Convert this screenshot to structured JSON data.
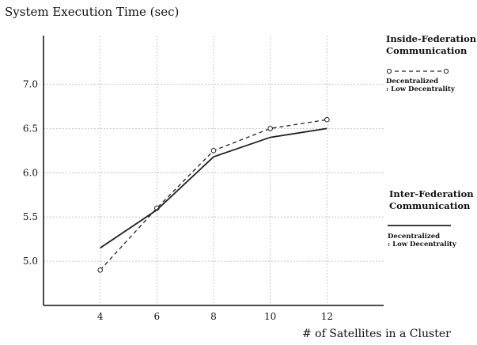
{
  "chart_data": {
    "type": "line",
    "title": "System Execution Time (sec)",
    "xlabel": "# of Satellites in a Cluster",
    "ylabel": "",
    "x": [
      4,
      6,
      8,
      10,
      12
    ],
    "xticks": [
      4,
      6,
      8,
      10,
      12
    ],
    "yticks": [
      5.0,
      5.5,
      6.0,
      6.5,
      7.0
    ],
    "ytick_labels": [
      "5.0",
      "5.5",
      "6.0",
      "6.5",
      "7.0"
    ],
    "xlim": [
      2,
      14
    ],
    "ylim": [
      4.5,
      7.55
    ],
    "grid": true,
    "series": [
      {
        "key": "inside",
        "values": [
          4.9,
          5.6,
          6.25,
          6.5,
          6.6
        ],
        "style": "dashed",
        "marker": "circle",
        "color": "#222222"
      },
      {
        "key": "inter",
        "values": [
          5.15,
          5.58,
          6.18,
          6.4,
          6.5
        ],
        "style": "solid",
        "marker": "none",
        "color": "#222222"
      }
    ],
    "legend": {
      "placement": "right",
      "groups": [
        {
          "heading_line1": "Inside-Federation",
          "heading_line2": "Communication",
          "desc_line1": "Decentralized",
          "desc_line2": ": Low Decentrality"
        },
        {
          "heading_line1": "Inter-Federation",
          "heading_line2": "Communication",
          "desc_line1": "Decentralized",
          "desc_line2": ": Low Decentrality"
        }
      ]
    }
  }
}
